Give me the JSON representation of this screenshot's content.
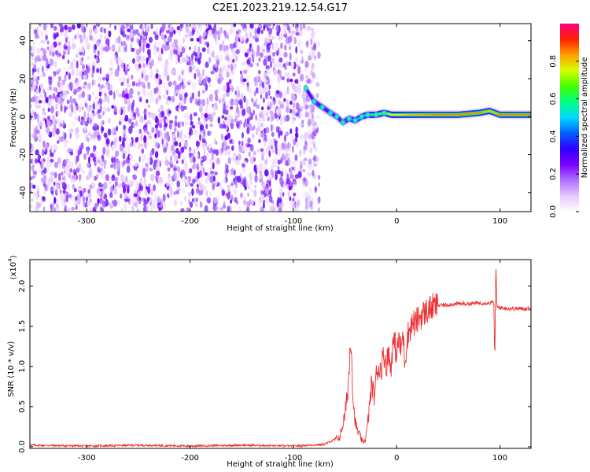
{
  "title": "C2E1.2023.219.12.54.G17",
  "chart_data": [
    {
      "type": "heatmap",
      "title": "C2E1.2023.219.12.54.G17",
      "xlabel": "Height of straight line (km)",
      "ylabel": "Frequency (Hz)",
      "xlim": [
        -355,
        130
      ],
      "ylim": [
        -50,
        49
      ],
      "xticks": [
        -300,
        -200,
        -100,
        0,
        100
      ],
      "yticks": [
        -40,
        -20,
        0,
        20,
        40
      ],
      "colorbar": {
        "label": "Normalized spectral amplitude",
        "range": [
          0.0,
          1.0
        ],
        "ticks": [
          0.0,
          0.2,
          0.4,
          0.6,
          0.8
        ],
        "colormap": [
          "#ffffff",
          "#e8c8ff",
          "#b070ff",
          "#7a00ff",
          "#3000ff",
          "#0060ff",
          "#00d8ff",
          "#00ff80",
          "#40ff00",
          "#d8ff00",
          "#ffa000",
          "#ff2000",
          "#ff0080"
        ]
      },
      "noise_region_x": [
        -355,
        -78
      ],
      "signal_track": {
        "x": [
          -88,
          -80,
          -72,
          -64,
          -58,
          -52,
          -46,
          -40,
          -34,
          -28,
          -20,
          -12,
          -5,
          0,
          10,
          20,
          40,
          60,
          80,
          90,
          100,
          130
        ],
        "freq": [
          15,
          8,
          5,
          2,
          0,
          -3,
          -1,
          -2,
          0,
          1,
          1,
          2,
          1,
          1,
          1,
          1,
          1,
          1,
          2,
          3,
          1,
          1
        ],
        "amplitude": [
          0.3,
          0.4,
          0.4,
          0.35,
          0.35,
          0.4,
          0.45,
          0.5,
          0.55,
          0.6,
          0.65,
          0.7,
          0.75,
          0.75,
          0.8,
          0.82,
          0.85,
          0.85,
          0.85,
          0.8,
          0.85,
          0.85
        ]
      }
    },
    {
      "type": "line",
      "xlabel": "Height of straight line (km)",
      "ylabel": "SNR (10 * v/v)",
      "scale_label": "(x10",
      "scale_exp": "4",
      "xlim": [
        -355,
        130
      ],
      "ylim": [
        -0.02,
        2.33
      ],
      "xticks": [
        -300,
        -200,
        -100,
        0,
        100
      ],
      "yticks": [
        0.0,
        0.5,
        1.0,
        1.5,
        2.0
      ],
      "ytick_labels": [
        "0.0",
        "0.5",
        "1.0",
        "1.5",
        "2.0"
      ],
      "color": "#ee3030",
      "series": [
        {
          "x": [
            -355,
            -300,
            -250,
            -200,
            -150,
            -100,
            -70,
            -55,
            -50,
            -48,
            -46,
            -45,
            -44,
            -43,
            -42,
            -40,
            -38,
            -35,
            -33,
            -30,
            -28,
            -26,
            -24,
            -22,
            -20,
            -18,
            -16,
            -14,
            -12,
            -10,
            -8,
            -6,
            -4,
            -2,
            0,
            2,
            4,
            6,
            8,
            10,
            12,
            14,
            16,
            18,
            20,
            25,
            30,
            35,
            40,
            50,
            60,
            70,
            80,
            90,
            94,
            95,
            96,
            97,
            98,
            100,
            110,
            120,
            130
          ],
          "y": [
            0.02,
            0.01,
            0.02,
            0.01,
            0.02,
            0.01,
            0.03,
            0.12,
            0.4,
            0.62,
            0.95,
            1.25,
            1.35,
            0.9,
            0.55,
            0.3,
            0.2,
            0.12,
            0.05,
            0.1,
            0.3,
            0.55,
            0.82,
            0.6,
            0.85,
            1.0,
            0.95,
            1.05,
            1.15,
            1.0,
            1.2,
            0.95,
            1.25,
            1.3,
            1.15,
            1.35,
            1.2,
            1.4,
            1.05,
            1.35,
            1.45,
            1.5,
            1.55,
            1.52,
            1.58,
            1.65,
            1.7,
            1.74,
            1.76,
            1.77,
            1.78,
            1.78,
            1.79,
            1.79,
            1.8,
            1.05,
            2.3,
            1.72,
            1.74,
            1.73,
            1.72,
            1.72,
            1.72
          ]
        }
      ]
    }
  ]
}
